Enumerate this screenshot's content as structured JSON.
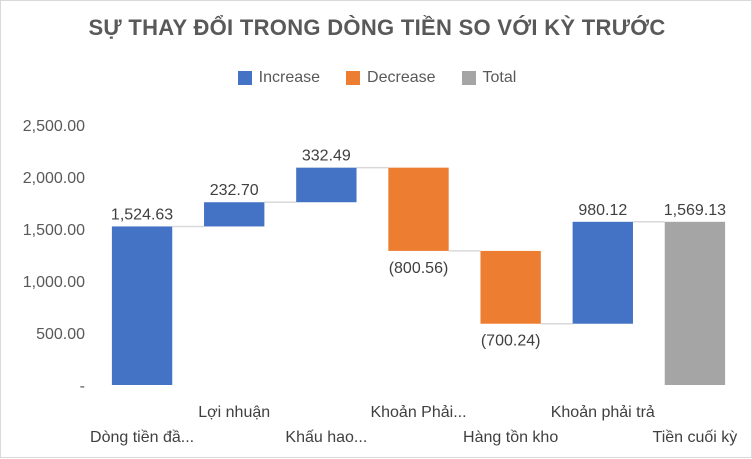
{
  "chart_data": {
    "type": "waterfall",
    "title": "SỰ THAY ĐỔI TRONG DÒNG TIỀN SO VỚI KỲ TRƯỚC",
    "legend": [
      {
        "key": "increase",
        "label": "Increase",
        "color": "#4472c4"
      },
      {
        "key": "decrease",
        "label": "Decrease",
        "color": "#ed7d31"
      },
      {
        "key": "total",
        "label": "Total",
        "color": "#a5a5a5"
      }
    ],
    "legend_position": "top",
    "categories": [
      "Dòng tiền đầ...",
      "Lợi nhuận",
      "Khấu hao...",
      "Khoản Phải...",
      "Hàng tồn kho",
      "Khoản phải trả",
      "Tiền cuối kỳ"
    ],
    "values": [
      1524.63,
      232.7,
      332.49,
      -800.56,
      -700.24,
      980.12,
      1569.13
    ],
    "kinds": [
      "increase",
      "increase",
      "increase",
      "decrease",
      "decrease",
      "increase",
      "total"
    ],
    "data_labels": [
      "1,524.63",
      "232.70",
      "332.49",
      "(800.56)",
      "(700.24)",
      "980.12",
      "1,569.13"
    ],
    "y_ticks": [
      "-",
      "500.00",
      "1,000.00",
      "1,500.00",
      "2,000.00",
      "2,500.00"
    ],
    "y_tick_values": [
      0,
      500,
      1000,
      1500,
      2000,
      2500
    ],
    "ylim": [
      0,
      2500
    ],
    "grid": false,
    "connector_lines": true
  }
}
